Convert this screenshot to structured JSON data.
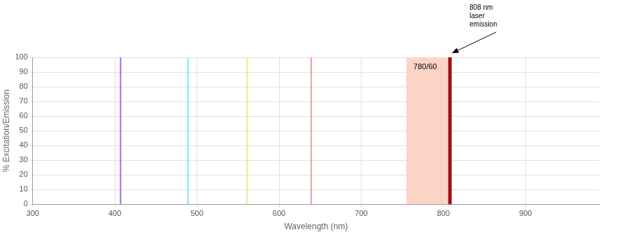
{
  "chart_data": {
    "type": "line",
    "xlabel": "Wavelength (nm)",
    "ylabel": "% Excitation/Emission",
    "xlim": [
      300,
      990
    ],
    "xticks": [
      300,
      400,
      500,
      600,
      700,
      800,
      900
    ],
    "ylim": [
      0,
      100
    ],
    "yticks": [
      0,
      10,
      20,
      30,
      40,
      50,
      60,
      70,
      80,
      90,
      100
    ],
    "grid": true,
    "series": [
      {
        "type": "line",
        "x": [
          407,
          407
        ],
        "values": [
          0,
          100
        ],
        "color": "#a36ae8",
        "line_style": "solid"
      },
      {
        "type": "line",
        "x": [
          489,
          489
        ],
        "values": [
          0,
          100
        ],
        "color": "#80e6ee",
        "line_style": "solid"
      },
      {
        "type": "line",
        "x": [
          561,
          561
        ],
        "values": [
          0,
          100
        ],
        "color": "#e6ee8a",
        "line_style": "solid"
      },
      {
        "type": "line",
        "x": [
          639,
          639
        ],
        "values": [
          0,
          100
        ],
        "color": "#ec9f98",
        "line_style": "solid"
      },
      {
        "type": "line",
        "x": [
          808,
          808
        ],
        "values": [
          0,
          100
        ],
        "color": "#a50f15",
        "line_style": "thick"
      },
      {
        "type": "area",
        "label": "780/60",
        "x": [
          755,
          806
        ],
        "values": [
          100,
          100
        ],
        "color": "#fdd3c6"
      }
    ],
    "annotations": [
      {
        "text": [
          "808 nm",
          "laser",
          "emission"
        ],
        "x": 808,
        "y": 100
      }
    ]
  }
}
